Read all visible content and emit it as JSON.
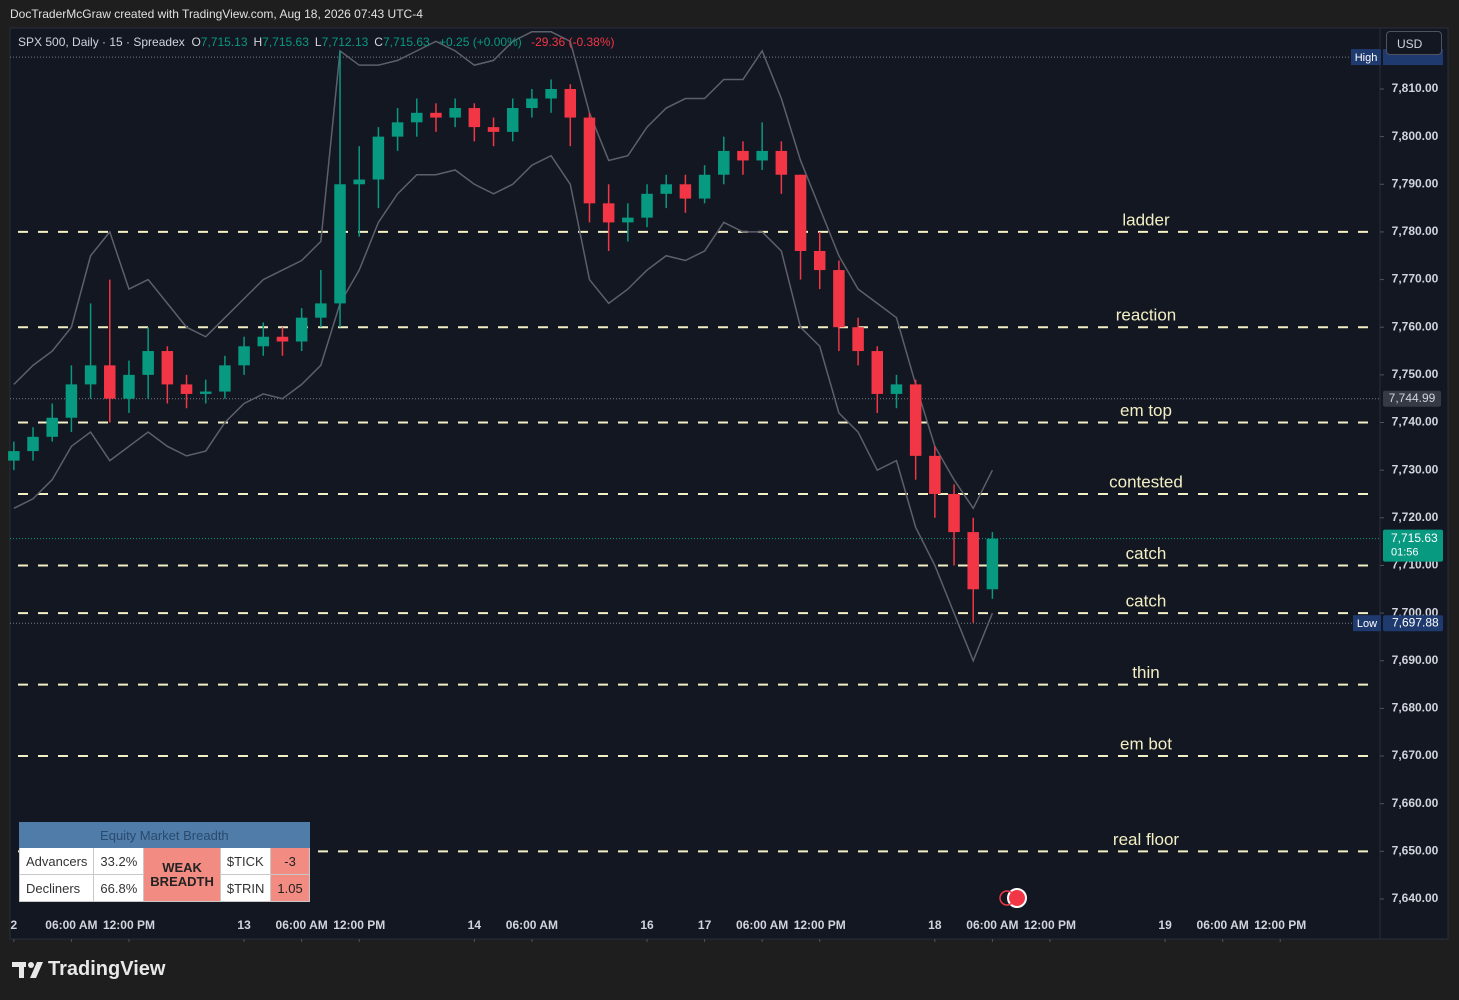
{
  "header": {
    "credit": "DocTraderMcGraw created with TradingView.com, Aug 18, 2026 07:43 UTC-4"
  },
  "chart_data": {
    "type": "candlestick",
    "legend": {
      "symbol": "SPX 500, Daily · 15 · Spreadex",
      "ohlc": [
        {
          "key": "O",
          "text": "7,715.13"
        },
        {
          "key": "H",
          "text": "7,715.63"
        },
        {
          "key": "L",
          "text": "7,712.13"
        },
        {
          "key": "C",
          "text": "7,715.63"
        }
      ],
      "change": "+0.25 (+0.00%)",
      "day_change": "-29.36 (-0.38%)"
    },
    "currency": "USD",
    "x": [
      0,
      1,
      2,
      3,
      4,
      5,
      6,
      7,
      8,
      9,
      10,
      11,
      12,
      13,
      14,
      15,
      16,
      17,
      18,
      19,
      20,
      21,
      22,
      23,
      24,
      25,
      26,
      27,
      28,
      29,
      30,
      31,
      32,
      33,
      34,
      35,
      36,
      37,
      38,
      39,
      40,
      41,
      42,
      43,
      44,
      45,
      46,
      47,
      48,
      49,
      50,
      51
    ],
    "open": [
      7732,
      7734,
      7737,
      7741,
      7748,
      7752,
      7745,
      7750,
      7755,
      7748,
      7746,
      7746.5,
      7752,
      7756,
      7758,
      7757,
      7762,
      7765,
      7790,
      7791,
      7800,
      7803,
      7805,
      7804,
      7806,
      7802,
      7801,
      7806,
      7808,
      7810,
      7804,
      7786,
      7782,
      7783,
      7788,
      7790,
      7787,
      7792,
      7797,
      7795,
      7797,
      7792,
      7776,
      7772,
      7760,
      7755,
      7746,
      7748,
      7733,
      7725,
      7717,
      7705
    ],
    "high": [
      7736,
      7739,
      7744,
      7752,
      7765,
      7770,
      7753,
      7760,
      7756,
      7750,
      7749,
      7754,
      7758,
      7761,
      7760,
      7764,
      7772,
      7818,
      7798,
      7802,
      7806,
      7808,
      7807,
      7808,
      7807,
      7804,
      7808,
      7810,
      7812,
      7811,
      7805,
      7790,
      7786,
      7790,
      7792,
      7792,
      7794,
      7800,
      7799,
      7803,
      7799,
      7792,
      7780,
      7774,
      7762,
      7756,
      7750,
      7749,
      7735,
      7727,
      7720,
      7717
    ],
    "low": [
      7730,
      7732,
      7736,
      7738,
      7745,
      7740,
      7742,
      7745,
      7744,
      7743,
      7744,
      7745,
      7750,
      7754,
      7754,
      7755,
      7760,
      7760,
      7779,
      7785,
      7797,
      7800,
      7801,
      7802,
      7799,
      7798,
      7799,
      7804,
      7805,
      7798,
      7782,
      7776,
      7778,
      7781,
      7785,
      7784,
      7786,
      7790,
      7792,
      7793,
      7788,
      7770,
      7768,
      7755,
      7752,
      7742,
      7743,
      7728,
      7720,
      7710,
      7698,
      7703
    ],
    "close": [
      7734,
      7737,
      7741,
      7748,
      7752,
      7745,
      7750,
      7755,
      7748,
      7746,
      7746.5,
      7752,
      7756,
      7758,
      7757,
      7762,
      7765,
      7790,
      7791,
      7800,
      7803,
      7805,
      7804,
      7806,
      7802,
      7801,
      7806,
      7808,
      7810,
      7804,
      7786,
      7782,
      7783,
      7788,
      7790,
      7787,
      7792,
      7797,
      7795,
      7797,
      7792,
      7776,
      7772,
      7760,
      7755,
      7746,
      7748,
      7733,
      7725,
      7717,
      7705,
      7715.63
    ],
    "up_color": "#089981",
    "down_color": "#f23645",
    "bands": [
      {
        "color": "#5d606b",
        "values": [
          7748,
          7752,
          7755,
          7760,
          7775,
          7780,
          7768,
          7770,
          7765,
          7760,
          7758,
          7762,
          7766,
          7770,
          7772,
          7774,
          7778,
          7818,
          7815,
          7815,
          7816,
          7818,
          7820,
          7818,
          7815,
          7816,
          7820,
          7822,
          7822,
          7820,
          7805,
          7795,
          7796,
          7802,
          7806,
          7808,
          7808,
          7812,
          7812,
          7818,
          7808,
          7795,
          7785,
          7775,
          7768,
          7765,
          7762,
          7748,
          7735,
          7728,
          7722,
          7730
        ]
      },
      {
        "color": "#5d606b",
        "values": [
          7722,
          7724,
          7728,
          7735,
          7738,
          7732,
          7735,
          7738,
          7735,
          7733,
          7734,
          7740,
          7744,
          7746,
          7745,
          7748,
          7752,
          7765,
          7772,
          7782,
          7788,
          7792,
          7792,
          7793,
          7790,
          7788,
          7790,
          7794,
          7796,
          7790,
          7770,
          7765,
          7768,
          7772,
          7775,
          7774,
          7776,
          7782,
          7780,
          7780,
          7776,
          7760,
          7756,
          7742,
          7738,
          7730,
          7732,
          7718,
          7710,
          7700,
          7690,
          7700
        ]
      }
    ],
    "levels": [
      {
        "name": "ladder",
        "value": 7780
      },
      {
        "name": "reaction",
        "value": 7760
      },
      {
        "name": "em top",
        "value": 7740
      },
      {
        "name": "contested",
        "value": 7725
      },
      {
        "name": "catch",
        "value": 7710
      },
      {
        "name": "catch",
        "value": 7700
      },
      {
        "name": "thin",
        "value": 7685
      },
      {
        "name": "em bot",
        "value": 7670
      },
      {
        "name": "real floor",
        "value": 7650
      }
    ],
    "level_color": "#f3efc4",
    "markers": {
      "high": {
        "tag": "High",
        "value": 7816.7
      },
      "prev_close": {
        "value": 7744.99,
        "label": "7,744.99"
      },
      "last": {
        "value": 7715.63,
        "label": "7,715.63",
        "countdown": "01:56"
      },
      "low": {
        "tag": "Low",
        "value": 7697.88,
        "label": "7,697.88"
      }
    },
    "xlim": [
      -0.2,
      71.2
    ],
    "xticks": [
      {
        "value": 0,
        "label": "2"
      },
      {
        "value": 3,
        "label": "06:00 AM"
      },
      {
        "value": 6,
        "label": "12:00 PM"
      },
      {
        "value": 12,
        "label": "13"
      },
      {
        "value": 15,
        "label": "06:00 AM"
      },
      {
        "value": 18,
        "label": "12:00 PM"
      },
      {
        "value": 24,
        "label": "14"
      },
      {
        "value": 27,
        "label": "06:00 AM"
      },
      {
        "value": 33,
        "label": "16"
      },
      {
        "value": 36,
        "label": "17"
      },
      {
        "value": 39,
        "label": "06:00 AM"
      },
      {
        "value": 42,
        "label": "12:00 PM"
      },
      {
        "value": 48,
        "label": "18"
      },
      {
        "value": 51,
        "label": "06:00 AM"
      },
      {
        "value": 54,
        "label": "12:00 PM"
      },
      {
        "value": 60,
        "label": "19"
      },
      {
        "value": 63,
        "label": "06:00 AM"
      },
      {
        "value": 66,
        "label": "12:00 PM"
      }
    ],
    "ylim": [
      7631.6,
      7822.8
    ],
    "yticks": [
      {
        "value": 7640,
        "label": "7,640.00"
      },
      {
        "value": 7650,
        "label": "7,650.00"
      },
      {
        "value": 7660,
        "label": "7,660.00"
      },
      {
        "value": 7670,
        "label": "7,670.00"
      },
      {
        "value": 7680,
        "label": "7,680.00"
      },
      {
        "value": 7690,
        "label": "7,690.00"
      },
      {
        "value": 7700,
        "label": "7,700.00"
      },
      {
        "value": 7710,
        "label": "7,710.00"
      },
      {
        "value": 7720,
        "label": "7,720.00"
      },
      {
        "value": 7730,
        "label": "7,730.00"
      },
      {
        "value": 7740,
        "label": "7,740.00"
      },
      {
        "value": 7750,
        "label": "7,750.00"
      },
      {
        "value": 7760,
        "label": "7,760.00"
      },
      {
        "value": 7770,
        "label": "7,770.00"
      },
      {
        "value": 7780,
        "label": "7,780.00"
      },
      {
        "value": 7790,
        "label": "7,790.00"
      },
      {
        "value": 7800,
        "label": "7,800.00"
      },
      {
        "value": 7810,
        "label": "7,810.00"
      }
    ]
  },
  "breadth": {
    "title": "Equity Market Breadth",
    "rows": [
      [
        "Advancers",
        "33.2%",
        "$TICK",
        "-3"
      ],
      [
        "Decliners",
        "66.8%",
        "$TRIN",
        "1.05"
      ]
    ],
    "status": "WEAK BREADTH"
  },
  "footer": {
    "brand": "TradingView"
  }
}
